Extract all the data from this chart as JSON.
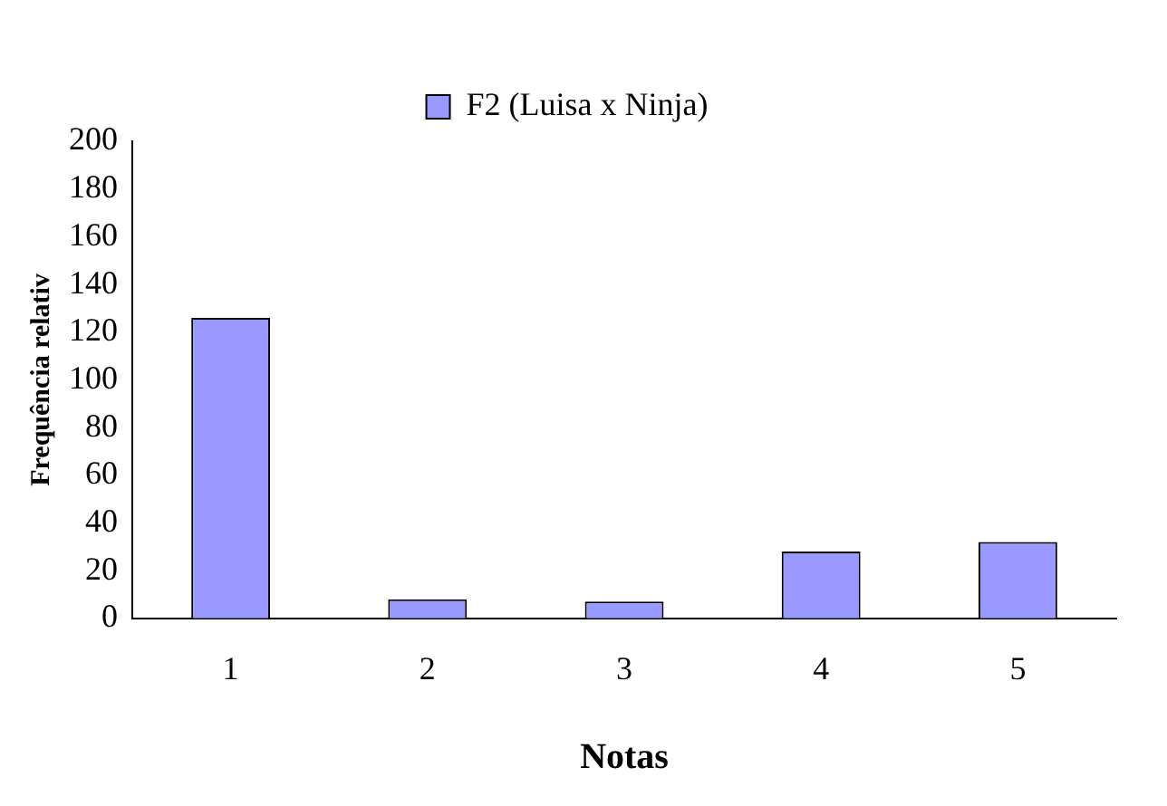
{
  "chart_data": {
    "type": "bar",
    "xlabel": "Notas",
    "ylabel": "Frequência relativ",
    "categories": [
      "1",
      "2",
      "3",
      "4",
      "5"
    ],
    "series": [
      {
        "name": "F2 (Luisa x Ninja)",
        "color": "#9999ff",
        "values": [
          126,
          8,
          7,
          28,
          32
        ]
      }
    ],
    "ylim": [
      0,
      200
    ],
    "yticks": [
      0,
      20,
      40,
      60,
      80,
      100,
      120,
      140,
      160,
      180,
      200
    ],
    "grid": false,
    "legend": "top"
  }
}
